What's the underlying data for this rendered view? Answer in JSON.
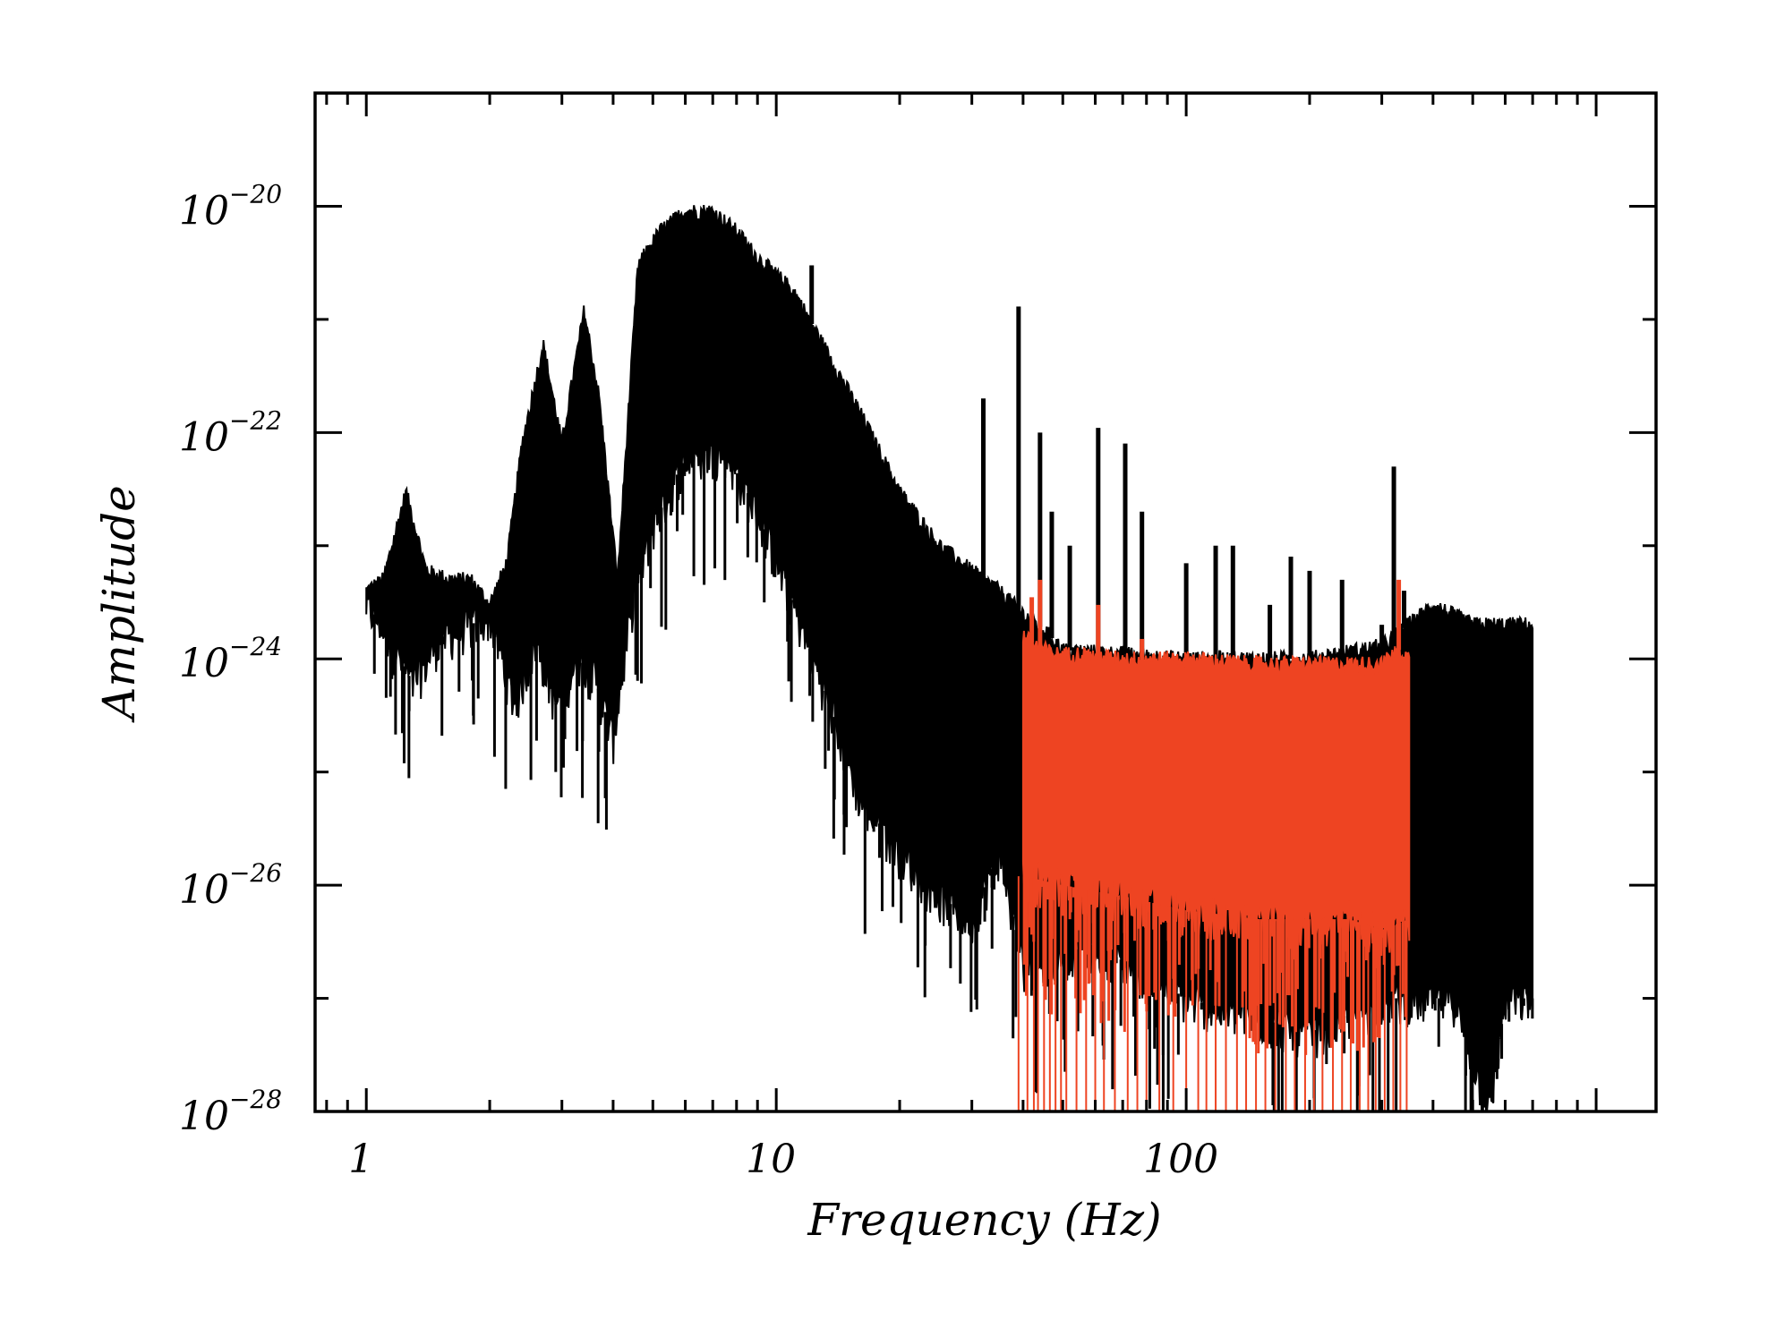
{
  "chart_data": {
    "type": "line",
    "xlabel": "Frequency (Hz)",
    "ylabel": "Amplitude",
    "x_scale": "log",
    "y_scale": "log",
    "xlim": [
      0.75,
      1400
    ],
    "ylim": [
      1e-28,
      1e-19
    ],
    "x_ticks": [
      {
        "value": 1,
        "label": "1"
      },
      {
        "value": 10,
        "label": "10"
      },
      {
        "value": 100,
        "label": "100"
      }
    ],
    "y_ticks": [
      {
        "value": 1e-28,
        "base": "10",
        "exp": "−28"
      },
      {
        "value": 1e-26,
        "base": "10",
        "exp": "−26"
      },
      {
        "value": 1e-24,
        "base": "10",
        "exp": "−24"
      },
      {
        "value": 1e-22,
        "base": "10",
        "exp": "−22"
      },
      {
        "value": 1e-20,
        "base": "10",
        "exp": "−20"
      }
    ],
    "grid": false,
    "series": [
      {
        "color": "#000000",
        "x_range": [
          1,
          700
        ],
        "upper": [
          [
            1,
            4e-24
          ],
          [
            1.1,
            5e-24
          ],
          [
            1.25,
            3e-23
          ],
          [
            1.4,
            6e-24
          ],
          [
            1.6,
            5e-24
          ],
          [
            1.8,
            5e-24
          ],
          [
            2,
            3e-24
          ],
          [
            2.2,
            7e-24
          ],
          [
            2.4,
            8e-23
          ],
          [
            2.7,
            6e-22
          ],
          [
            3.0,
            8e-23
          ],
          [
            3.4,
            1.2e-21
          ],
          [
            3.7,
            2e-22
          ],
          [
            4.1,
            5e-24
          ],
          [
            4.6,
            3e-21
          ],
          [
            5.2,
            6e-21
          ],
          [
            6.0,
            9e-21
          ],
          [
            7.0,
            9e-21
          ],
          [
            8.0,
            6e-21
          ],
          [
            9.0,
            3.5e-21
          ],
          [
            11,
            1.8e-21
          ],
          [
            13,
            6e-22
          ],
          [
            16,
            1.5e-22
          ],
          [
            20,
            3e-23
          ],
          [
            25,
            1e-23
          ],
          [
            30,
            6e-24
          ],
          [
            35,
            4e-24
          ],
          [
            40,
            2.5e-24
          ],
          [
            45,
            1.8e-24
          ],
          [
            50,
            1.2e-24
          ],
          [
            100,
            1e-24
          ],
          [
            200,
            1e-24
          ],
          [
            300,
            1.3e-24
          ],
          [
            400,
            3e-24
          ],
          [
            500,
            2e-24
          ],
          [
            600,
            2e-24
          ],
          [
            700,
            2e-24
          ]
        ],
        "lower": [
          [
            1,
            3e-24
          ],
          [
            1.1,
            2e-24
          ],
          [
            1.3,
            6e-25
          ],
          [
            1.5,
            1.5e-24
          ],
          [
            1.8,
            2e-24
          ],
          [
            2,
            2.5e-24
          ],
          [
            2.3,
            4e-25
          ],
          [
            2.6,
            1.5e-24
          ],
          [
            2.9,
            4e-25
          ],
          [
            3.3,
            1e-24
          ],
          [
            3.6,
            7e-25
          ],
          [
            4.0,
            2e-25
          ],
          [
            4.5,
            4e-24
          ],
          [
            5.0,
            1.5e-23
          ],
          [
            6.0,
            6e-23
          ],
          [
            7.5,
            7e-23
          ],
          [
            9.0,
            2e-23
          ],
          [
            11,
            3e-24
          ],
          [
            13,
            6e-25
          ],
          [
            16,
            6e-26
          ],
          [
            20,
            2e-26
          ],
          [
            25,
            8e-27
          ],
          [
            30,
            5e-27
          ],
          [
            35,
            2e-26
          ],
          [
            40,
            2e-27
          ],
          [
            60,
            3e-27
          ],
          [
            100,
            1e-27
          ],
          [
            200,
            5e-28
          ],
          [
            300,
            1e-27
          ],
          [
            450,
            1e-27
          ],
          [
            550,
            1e-28
          ],
          [
            600,
            1e-27
          ]
        ],
        "spikes": [
          [
            12.2,
            3e-21
          ],
          [
            32,
            2e-22
          ],
          [
            39,
            1.3e-21
          ],
          [
            44,
            1e-22
          ],
          [
            47,
            2e-23
          ],
          [
            52,
            1e-23
          ],
          [
            61,
            1.1e-22
          ],
          [
            71,
            8e-23
          ],
          [
            78,
            2e-23
          ],
          [
            100,
            7e-24
          ],
          [
            118,
            1e-23
          ],
          [
            130,
            1e-23
          ],
          [
            160,
            3e-24
          ],
          [
            180,
            8e-24
          ],
          [
            200,
            6e-24
          ],
          [
            240,
            5e-24
          ],
          [
            300,
            2e-24
          ],
          [
            321,
            5e-23
          ],
          [
            340,
            4e-24
          ]
        ]
      },
      {
        "color": "#ee4422",
        "x_range": [
          40,
          350
        ],
        "upper": [
          [
            40,
            1.6e-24
          ],
          [
            43,
            1.3e-24
          ],
          [
            48,
            1.1e-24
          ],
          [
            55,
            1.1e-24
          ],
          [
            70,
            1e-24
          ],
          [
            100,
            1e-24
          ],
          [
            150,
            9e-25
          ],
          [
            200,
            9e-25
          ],
          [
            250,
            9e-25
          ],
          [
            300,
            9e-25
          ],
          [
            330,
            1.2e-24
          ],
          [
            350,
            1e-24
          ]
        ],
        "lower": [
          [
            40,
            1.2e-26
          ],
          [
            50,
            1e-26
          ],
          [
            70,
            8e-27
          ],
          [
            100,
            6e-27
          ],
          [
            150,
            5e-27
          ],
          [
            200,
            5e-27
          ],
          [
            250,
            5e-27
          ],
          [
            300,
            4e-27
          ],
          [
            350,
            5e-27
          ]
        ],
        "spikes": [
          [
            42,
            3.5e-24
          ],
          [
            44,
            5e-24
          ],
          [
            61,
            3e-24
          ],
          [
            78,
            1.5e-24
          ],
          [
            330,
            5e-24
          ]
        ],
        "drops": [
          39,
          41,
          42.5,
          43.5,
          45,
          46.5,
          48,
          49.5,
          51,
          54,
          57,
          60,
          63,
          67,
          72,
          76,
          80,
          86,
          93,
          100,
          107,
          112,
          118,
          125,
          133,
          140,
          148,
          156,
          165,
          175,
          184,
          195,
          205,
          215,
          228,
          240,
          252,
          265,
          278,
          290,
          305,
          320,
          333,
          345
        ]
      }
    ]
  }
}
